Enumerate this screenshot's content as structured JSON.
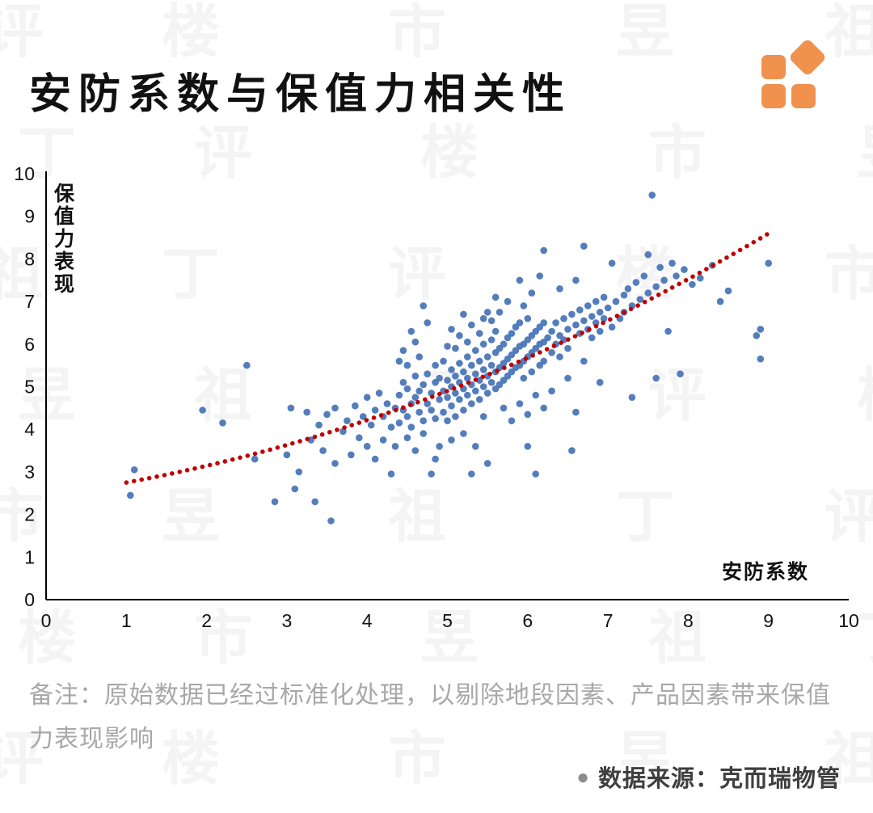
{
  "watermark": {
    "chars": [
      "评",
      "楼",
      "市",
      "昱",
      "祖",
      "丁"
    ]
  },
  "header": {
    "title": "安防系数与保值力相关性",
    "logo_color": "#f0914e"
  },
  "chart_data": {
    "type": "scatter",
    "title": "安防系数与保值力相关性",
    "xlabel": "安防系数",
    "ylabel": "保值力表现",
    "xlim": [
      0,
      10
    ],
    "ylim": [
      0,
      10
    ],
    "x_ticks": [
      "0",
      "1",
      "2",
      "3",
      "4",
      "5",
      "6",
      "7",
      "8",
      "9",
      "10"
    ],
    "y_ticks": [
      "0",
      "1",
      "2",
      "3",
      "4",
      "5",
      "6",
      "7",
      "8",
      "9",
      "10"
    ],
    "grid": false,
    "legend": "none",
    "point_color": "#4b76b7",
    "axis_color": "#000000",
    "points": [
      [
        1.05,
        2.45
      ],
      [
        1.1,
        3.05
      ],
      [
        1.95,
        4.45
      ],
      [
        2.2,
        4.15
      ],
      [
        2.5,
        5.5
      ],
      [
        2.6,
        3.3
      ],
      [
        2.85,
        2.3
      ],
      [
        3.0,
        3.4
      ],
      [
        3.05,
        4.5
      ],
      [
        3.1,
        2.6
      ],
      [
        3.15,
        3.0
      ],
      [
        3.25,
        4.4
      ],
      [
        3.3,
        3.75
      ],
      [
        3.35,
        2.3
      ],
      [
        3.4,
        4.1
      ],
      [
        3.45,
        3.5
      ],
      [
        3.5,
        4.35
      ],
      [
        3.55,
        1.85
      ],
      [
        3.6,
        3.2
      ],
      [
        3.6,
        4.5
      ],
      [
        3.7,
        3.95
      ],
      [
        3.75,
        4.2
      ],
      [
        3.8,
        3.4
      ],
      [
        3.85,
        4.55
      ],
      [
        3.9,
        3.8
      ],
      [
        3.95,
        4.3
      ],
      [
        4.0,
        3.6
      ],
      [
        4.0,
        4.75
      ],
      [
        4.05,
        4.1
      ],
      [
        4.1,
        3.3
      ],
      [
        4.1,
        4.45
      ],
      [
        4.15,
        4.85
      ],
      [
        4.2,
        4.3
      ],
      [
        4.2,
        3.75
      ],
      [
        4.25,
        4.6
      ],
      [
        4.3,
        4.05
      ],
      [
        4.3,
        2.95
      ],
      [
        4.35,
        4.5
      ],
      [
        4.35,
        3.6
      ],
      [
        4.4,
        4.8
      ],
      [
        4.4,
        4.15
      ],
      [
        4.45,
        4.45
      ],
      [
        4.45,
        5.1
      ],
      [
        4.5,
        4.3
      ],
      [
        4.5,
        3.8
      ],
      [
        4.5,
        4.95
      ],
      [
        4.55,
        4.6
      ],
      [
        4.55,
        4.05
      ],
      [
        4.6,
        4.75
      ],
      [
        4.6,
        5.25
      ],
      [
        4.6,
        3.5
      ],
      [
        4.65,
        4.4
      ],
      [
        4.65,
        4.9
      ],
      [
        4.7,
        4.2
      ],
      [
        4.7,
        5.05
      ],
      [
        4.7,
        3.9
      ],
      [
        4.75,
        4.6
      ],
      [
        4.75,
        5.3
      ],
      [
        4.8,
        4.45
      ],
      [
        4.8,
        4.85
      ],
      [
        4.8,
        2.95
      ],
      [
        4.85,
        5.1
      ],
      [
        4.85,
        4.25
      ],
      [
        4.85,
        5.5
      ],
      [
        4.9,
        4.7
      ],
      [
        4.9,
        5.2
      ],
      [
        4.9,
        3.6
      ],
      [
        4.95,
        4.9
      ],
      [
        4.95,
        4.4
      ],
      [
        4.95,
        5.6
      ],
      [
        5.0,
        4.75
      ],
      [
        5.0,
        5.15
      ],
      [
        5.0,
        4.2
      ],
      [
        4.55,
        6.3
      ],
      [
        4.6,
        6.05
      ],
      [
        4.75,
        6.5
      ],
      [
        4.4,
        5.6
      ],
      [
        4.45,
        5.85
      ],
      [
        4.65,
        5.7
      ],
      [
        4.85,
        3.3
      ],
      [
        4.7,
        6.9
      ],
      [
        4.5,
        5.5
      ],
      [
        5.05,
        5.0
      ],
      [
        5.05,
        4.55
      ],
      [
        5.05,
        5.4
      ],
      [
        5.1,
        4.85
      ],
      [
        5.1,
        5.25
      ],
      [
        5.1,
        4.3
      ],
      [
        5.15,
        5.1
      ],
      [
        5.15,
        4.7
      ],
      [
        5.15,
        5.55
      ],
      [
        5.2,
        4.95
      ],
      [
        5.2,
        5.35
      ],
      [
        5.2,
        4.45
      ],
      [
        5.25,
        5.2
      ],
      [
        5.25,
        4.8
      ],
      [
        5.25,
        5.7
      ],
      [
        5.3,
        5.05
      ],
      [
        5.3,
        5.5
      ],
      [
        5.3,
        4.6
      ],
      [
        5.35,
        5.3
      ],
      [
        5.35,
        4.9
      ],
      [
        5.35,
        5.85
      ],
      [
        5.4,
        5.15
      ],
      [
        5.4,
        5.6
      ],
      [
        5.4,
        4.7
      ],
      [
        5.45,
        5.4
      ],
      [
        5.45,
        5.0
      ],
      [
        5.45,
        6.0
      ],
      [
        5.5,
        5.25
      ],
      [
        5.5,
        5.7
      ],
      [
        5.5,
        4.85
      ],
      [
        5.55,
        5.5
      ],
      [
        5.55,
        5.1
      ],
      [
        5.55,
        6.1
      ],
      [
        5.6,
        5.35
      ],
      [
        5.6,
        5.8
      ],
      [
        5.6,
        4.95
      ],
      [
        5.05,
        6.35
      ],
      [
        5.15,
        6.2
      ],
      [
        5.3,
        6.45
      ],
      [
        5.45,
        6.6
      ],
      [
        5.2,
        3.9
      ],
      [
        5.35,
        3.6
      ],
      [
        5.5,
        3.2
      ],
      [
        5.1,
        5.9
      ],
      [
        5.25,
        6.05
      ],
      [
        5.4,
        6.25
      ],
      [
        5.55,
        6.55
      ],
      [
        5.0,
        5.95
      ],
      [
        5.3,
        2.95
      ],
      [
        5.45,
        4.3
      ],
      [
        5.6,
        6.3
      ],
      [
        5.05,
        3.75
      ],
      [
        5.5,
        6.75
      ],
      [
        5.2,
        6.7
      ],
      [
        5.6,
        7.1
      ],
      [
        5.65,
        5.45
      ],
      [
        5.65,
        5.9
      ],
      [
        5.65,
        5.05
      ],
      [
        5.7,
        5.55
      ],
      [
        5.7,
        6.0
      ],
      [
        5.7,
        5.15
      ],
      [
        5.75,
        5.65
      ],
      [
        5.75,
        6.15
      ],
      [
        5.75,
        5.25
      ],
      [
        5.8,
        5.75
      ],
      [
        5.8,
        5.35
      ],
      [
        5.8,
        6.25
      ],
      [
        5.85,
        5.85
      ],
      [
        5.85,
        5.45
      ],
      [
        5.85,
        6.4
      ],
      [
        5.9,
        5.95
      ],
      [
        5.9,
        5.5
      ],
      [
        5.9,
        6.5
      ],
      [
        5.95,
        6.0
      ],
      [
        5.95,
        5.6
      ],
      [
        5.95,
        5.2
      ],
      [
        6.0,
        6.1
      ],
      [
        6.0,
        5.7
      ],
      [
        6.0,
        6.6
      ],
      [
        6.05,
        6.2
      ],
      [
        6.05,
        5.8
      ],
      [
        6.05,
        5.35
      ],
      [
        6.1,
        6.3
      ],
      [
        6.1,
        5.9
      ],
      [
        6.1,
        2.95
      ],
      [
        6.15,
        6.4
      ],
      [
        6.15,
        6.0
      ],
      [
        6.15,
        5.5
      ],
      [
        6.2,
        6.5
      ],
      [
        6.2,
        6.05
      ],
      [
        6.2,
        5.6
      ],
      [
        5.7,
        4.5
      ],
      [
        5.8,
        4.2
      ],
      [
        5.9,
        4.6
      ],
      [
        6.0,
        4.35
      ],
      [
        6.1,
        4.8
      ],
      [
        6.2,
        4.5
      ],
      [
        5.75,
        7.0
      ],
      [
        5.9,
        7.5
      ],
      [
        6.05,
        7.2
      ],
      [
        6.2,
        8.2
      ],
      [
        5.65,
        6.75
      ],
      [
        5.95,
        6.9
      ],
      [
        6.15,
        7.6
      ],
      [
        6.0,
        3.6
      ],
      [
        6.25,
        6.15
      ],
      [
        6.3,
        6.3
      ],
      [
        6.3,
        5.8
      ],
      [
        6.35,
        6.5
      ],
      [
        6.35,
        6.0
      ],
      [
        6.4,
        6.2
      ],
      [
        6.4,
        5.7
      ],
      [
        6.45,
        6.6
      ],
      [
        6.45,
        6.1
      ],
      [
        6.5,
        6.35
      ],
      [
        6.5,
        5.9
      ],
      [
        6.55,
        6.7
      ],
      [
        6.55,
        3.5
      ],
      [
        6.6,
        6.45
      ],
      [
        6.6,
        4.4
      ],
      [
        6.65,
        6.8
      ],
      [
        6.65,
        6.25
      ],
      [
        6.7,
        6.55
      ],
      [
        6.7,
        8.3
      ],
      [
        6.75,
        6.9
      ],
      [
        6.75,
        6.35
      ],
      [
        6.8,
        6.65
      ],
      [
        6.8,
        6.15
      ],
      [
        6.85,
        7.0
      ],
      [
        6.85,
        6.5
      ],
      [
        6.9,
        6.75
      ],
      [
        6.9,
        6.3
      ],
      [
        6.95,
        7.1
      ],
      [
        6.95,
        6.6
      ],
      [
        6.3,
        4.9
      ],
      [
        6.5,
        5.2
      ],
      [
        6.7,
        5.6
      ],
      [
        6.9,
        5.1
      ],
      [
        6.4,
        7.3
      ],
      [
        6.6,
        7.5
      ],
      [
        7.0,
        6.85
      ],
      [
        7.05,
        7.9
      ],
      [
        7.05,
        6.4
      ],
      [
        7.1,
        7.0
      ],
      [
        7.15,
        6.6
      ],
      [
        7.2,
        7.15
      ],
      [
        7.2,
        6.75
      ],
      [
        7.25,
        7.3
      ],
      [
        7.3,
        4.75
      ],
      [
        7.3,
        6.9
      ],
      [
        7.35,
        7.45
      ],
      [
        7.4,
        7.05
      ],
      [
        7.45,
        7.6
      ],
      [
        7.5,
        8.1
      ],
      [
        7.5,
        7.2
      ],
      [
        7.55,
        9.5
      ],
      [
        7.6,
        5.2
      ],
      [
        7.6,
        7.35
      ],
      [
        7.65,
        7.8
      ],
      [
        7.7,
        7.5
      ],
      [
        7.75,
        6.3
      ],
      [
        7.8,
        7.9
      ],
      [
        7.85,
        7.6
      ],
      [
        7.9,
        5.3
      ],
      [
        7.95,
        7.75
      ],
      [
        8.05,
        7.4
      ],
      [
        8.15,
        7.55
      ],
      [
        8.3,
        7.85
      ],
      [
        8.4,
        7.0
      ],
      [
        8.5,
        7.25
      ],
      [
        8.85,
        6.2
      ],
      [
        8.9,
        5.65
      ],
      [
        8.9,
        6.35
      ],
      [
        9.0,
        7.9
      ]
    ],
    "trendline": {
      "style": "dotted",
      "color": "#c00000",
      "x_range": [
        1.0,
        9.05
      ],
      "quadratic": {
        "a": 0.0484,
        "b": 0.2469,
        "c": 2.455
      }
    }
  },
  "footer": {
    "note": "备注：原始数据已经过标准化处理，以剔除地段因素、产品因素带来保值力表现影响",
    "source_bullet": "●",
    "source": "数据来源：克而瑞物管"
  }
}
